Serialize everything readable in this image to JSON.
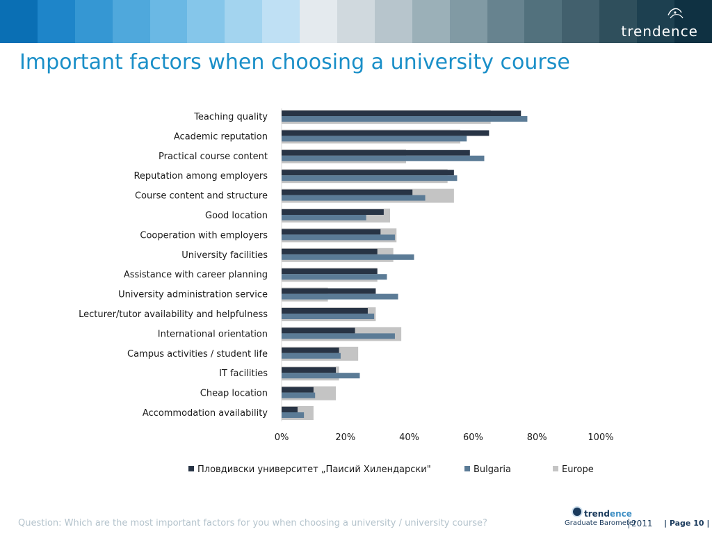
{
  "header": {
    "colors": [
      "#0a6fb4",
      "#1e85c9",
      "#3597d3",
      "#4fa8dc",
      "#6ab8e4",
      "#85c6ea",
      "#a3d4ef",
      "#bfe0f4",
      "#e4eaee",
      "#d0d9de",
      "#b7c5cc",
      "#9bb0b8",
      "#819aa4",
      "#67838f",
      "#52717d",
      "#42606d",
      "#2f4f5c",
      "#1d4050",
      "#0f3142"
    ],
    "logo_text": "trendence"
  },
  "title": "Important factors when choosing a university course",
  "chart_data": {
    "type": "bar",
    "orientation": "horizontal",
    "categories": [
      "Teaching quality",
      "Academic reputation",
      "Practical course content",
      "Reputation among employers",
      "Course content and structure",
      "Good location",
      "Cooperation with employers",
      "University facilities",
      "Assistance with career planning",
      "University administration service",
      "Lecturer/tutor availability and helpfulness",
      "International orientation",
      "Campus activities / student life",
      "IT facilities",
      "Cheap location",
      "Accommodation availability"
    ],
    "series": [
      {
        "name": "Пловдивски университет „Паисий Хилендарски\"",
        "color": "#283445",
        "values": [
          75,
          65,
          59,
          54,
          41,
          32,
          31,
          30,
          30,
          29.5,
          27,
          23,
          18,
          17,
          10,
          5
        ]
      },
      {
        "name": "Bulgaria",
        "color": "#5b7b96",
        "values": [
          77,
          58,
          63.5,
          55,
          45,
          26.5,
          35.5,
          41.5,
          33,
          36.5,
          29,
          35.5,
          18.5,
          24.5,
          10.5,
          7
        ]
      },
      {
        "name": "Europe",
        "color": "#c4c4c4",
        "values": [
          65.5,
          56,
          39,
          52,
          54,
          34,
          36,
          35,
          30,
          14.5,
          29.5,
          37.5,
          24,
          18,
          17,
          10
        ]
      }
    ],
    "xlim": [
      0,
      100
    ],
    "x_ticks": [
      "0%",
      "20%",
      "40%",
      "60%",
      "80%",
      "100%"
    ],
    "legend_position": "bottom"
  },
  "footer": {
    "question": "Question: Which are the most important factors for you when choosing a university / university course?",
    "logo_brand": "trend",
    "logo_brand_accent": "ence",
    "logo_sub": "Graduate Barometer",
    "logo_year": "2011",
    "page": "| Page 10 |"
  }
}
